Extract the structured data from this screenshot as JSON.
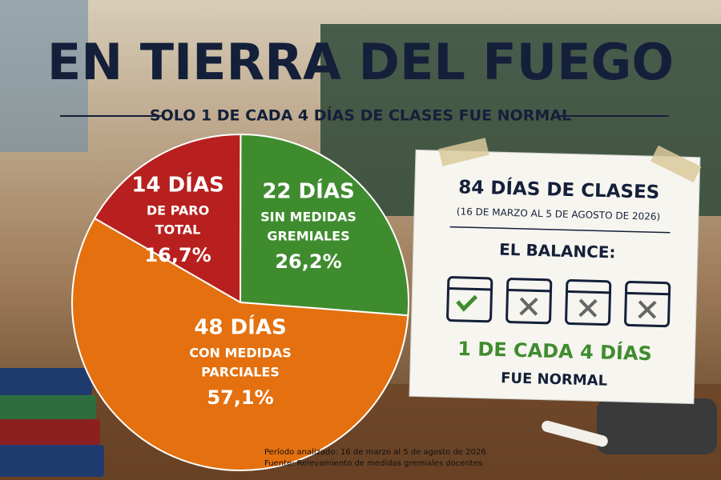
{
  "chart_data": {
    "type": "pie",
    "title": "EN TIERRA DEL FUEGO",
    "subtitle": "SOLO 1 DE CADA 4 DÍAS DE CLASES FUE NORMAL",
    "day_labels": [
      "14 DÍAS",
      "22 DÍAS",
      "48 DÍAS"
    ],
    "labels": [
      [
        "DE PARO",
        "TOTAL"
      ],
      [
        "SIN MEDIDAS",
        "GREMIALES"
      ],
      [
        "CON MEDIDAS",
        "PARCIALES"
      ]
    ],
    "values": [
      16.7,
      26.2,
      57.1
    ],
    "value_labels": [
      "16,7%",
      "26,2%",
      "57,1%"
    ],
    "colors": [
      "#b7201e",
      "#3f8c2f",
      "#e4700f"
    ]
  },
  "card": {
    "title": "84 DÍAS DE CLASES",
    "subtitle": "(16 DE MARZO AL 5 DE AGOSTO DE 2026)",
    "balance": "EL BALANCE:",
    "highlight": "1 DE CADA 4 DÍAS",
    "footer": "FUE NORMAL"
  },
  "notes": [
    "Período analizado: 16 de marzo al 5 de agosto de 2026",
    "Fuente: Relevamiento de medidas gremiales docentes"
  ]
}
